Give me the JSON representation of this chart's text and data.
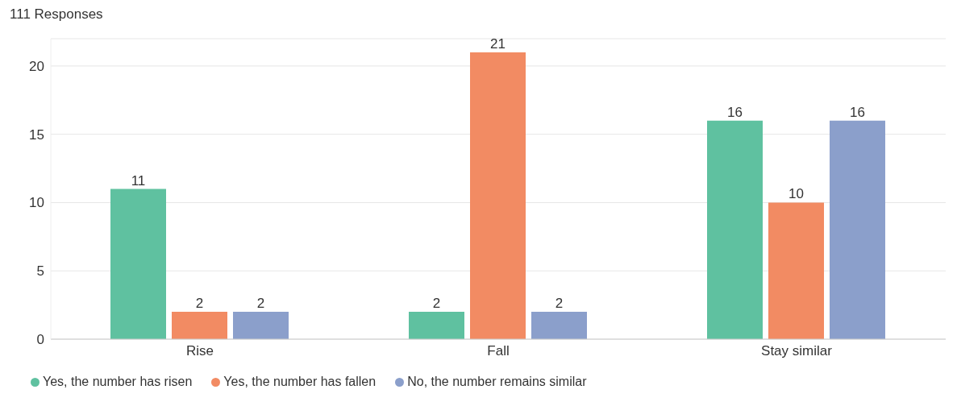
{
  "chart_data": {
    "type": "bar",
    "title": "111 Responses",
    "categories": [
      "Rise",
      "Fall",
      "Stay similar"
    ],
    "series": [
      {
        "name": "Yes, the number has risen",
        "color": "#5fc1a0",
        "values": [
          11,
          2,
          16
        ]
      },
      {
        "name": "Yes, the number has fallen",
        "color": "#f28b63",
        "values": [
          2,
          21,
          10
        ]
      },
      {
        "name": "No, the number remains similar",
        "color": "#8b9fcb",
        "values": [
          2,
          2,
          16
        ]
      }
    ],
    "ylim": [
      0,
      22
    ],
    "yticks": [
      0,
      5,
      10,
      15,
      20
    ],
    "grid": "y",
    "legend": "bottom left",
    "data_labels": true
  }
}
